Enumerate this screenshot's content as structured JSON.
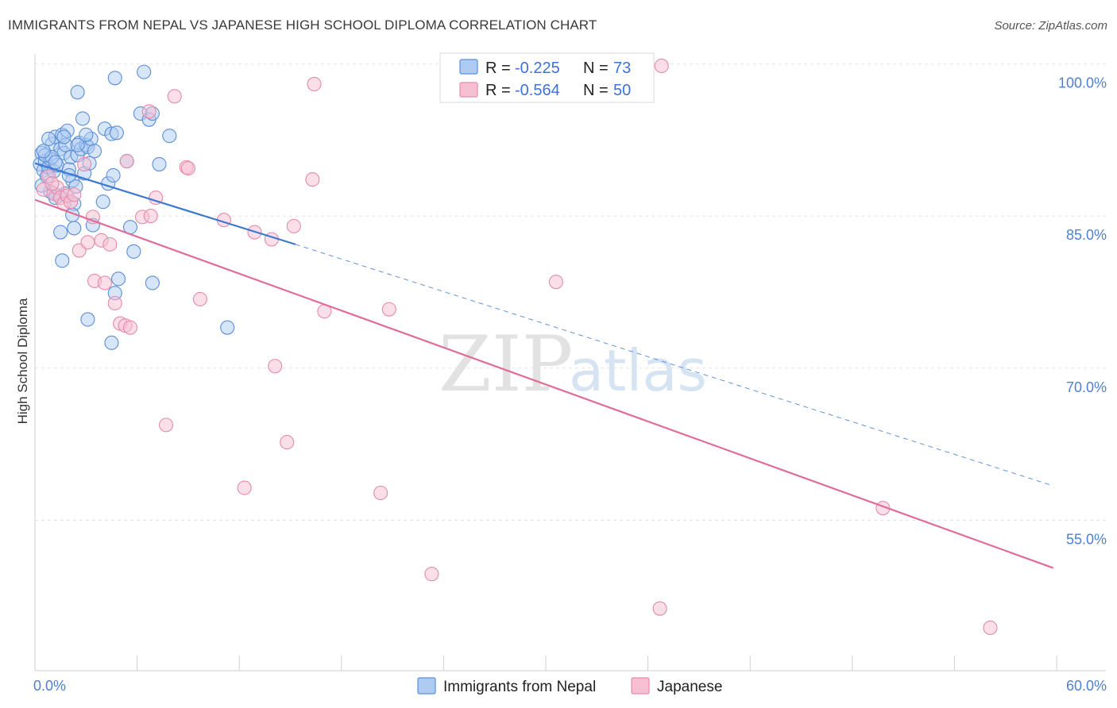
{
  "title": "IMMIGRANTS FROM NEPAL VS JAPANESE HIGH SCHOOL DIPLOMA CORRELATION CHART",
  "source": "Source: ZipAtlas.com",
  "watermark": {
    "zip": "ZIP",
    "atlas": "atlas"
  },
  "colors": {
    "nepal_fill": "#aecbf2",
    "nepal_stroke": "#5b8fd8",
    "nepal_line": "#3b78d0",
    "japanese_fill": "#f7bfd2",
    "japanese_stroke": "#e58aab",
    "japanese_line": "#e06d97",
    "grid": "#e3e3e3",
    "axis_text": "#4f7fd0"
  },
  "legend": {
    "rows": [
      {
        "r_label": "R =",
        "r_value": "-0.225",
        "n_label": "N =",
        "n_value": "73"
      },
      {
        "r_label": "R =",
        "r_value": "-0.564",
        "n_label": "N =",
        "n_value": "50"
      }
    ]
  },
  "chart_data": {
    "type": "scatter",
    "title": "IMMIGRANTS FROM NEPAL VS JAPANESE HIGH SCHOOL DIPLOMA CORRELATION CHART",
    "xlabel": "",
    "ylabel": "High School Diploma",
    "xlim": [
      0,
      60
    ],
    "ylim": [
      42,
      103
    ],
    "x_ticks": [
      "0.0%",
      "60.0%"
    ],
    "y_ticks": [
      {
        "value": 100,
        "label": "100.0%"
      },
      {
        "value": 85,
        "label": "85.0%"
      },
      {
        "value": 70,
        "label": "70.0%"
      },
      {
        "value": 55,
        "label": "55.0%"
      }
    ],
    "grid": true,
    "legend_position": "top-center",
    "series": [
      {
        "name": "Immigrants from Nepal",
        "r": -0.225,
        "n": 73,
        "trend": {
          "x0": 0,
          "y0": 90.2,
          "x1": 15.3,
          "y1": 82.2,
          "dashed_to_x": 59.8,
          "dashed_to_y": 58.4
        },
        "points": [
          [
            0.3,
            90.1
          ],
          [
            0.4,
            91.2
          ],
          [
            0.5,
            89.5
          ],
          [
            0.6,
            90.4
          ],
          [
            0.7,
            88.9
          ],
          [
            0.8,
            89.8
          ],
          [
            0.9,
            90.6
          ],
          [
            1.0,
            92.1
          ],
          [
            1.1,
            89.4
          ],
          [
            1.2,
            92.8
          ],
          [
            1.3,
            90.0
          ],
          [
            1.4,
            87.0
          ],
          [
            1.5,
            91.6
          ],
          [
            1.6,
            93.0
          ],
          [
            1.7,
            91.2
          ],
          [
            1.8,
            92.0
          ],
          [
            1.9,
            93.4
          ],
          [
            2.0,
            89.6
          ],
          [
            2.1,
            90.8
          ],
          [
            2.2,
            88.5
          ],
          [
            2.3,
            86.2
          ],
          [
            2.4,
            87.9
          ],
          [
            2.5,
            91.0
          ],
          [
            2.6,
            92.2
          ],
          [
            2.7,
            91.6
          ],
          [
            2.8,
            94.6
          ],
          [
            2.9,
            89.2
          ],
          [
            3.0,
            92.0
          ],
          [
            3.1,
            91.8
          ],
          [
            3.2,
            90.2
          ],
          [
            3.3,
            92.6
          ],
          [
            3.4,
            84.1
          ],
          [
            3.5,
            91.4
          ],
          [
            2.5,
            97.2
          ],
          [
            4.1,
            93.6
          ],
          [
            4.5,
            93.1
          ],
          [
            4.3,
            88.2
          ],
          [
            4.8,
            93.2
          ],
          [
            4.6,
            89.0
          ],
          [
            4.0,
            86.4
          ],
          [
            0.6,
            91.0
          ],
          [
            0.8,
            92.6
          ],
          [
            1.0,
            90.8
          ],
          [
            0.9,
            87.4
          ],
          [
            1.2,
            86.8
          ],
          [
            1.8,
            87.2
          ],
          [
            2.2,
            85.1
          ],
          [
            1.5,
            83.4
          ],
          [
            2.3,
            83.8
          ],
          [
            1.6,
            80.6
          ],
          [
            3.1,
            74.8
          ],
          [
            4.5,
            72.5
          ],
          [
            4.9,
            78.8
          ],
          [
            4.7,
            77.4
          ],
          [
            5.6,
            83.9
          ],
          [
            5.8,
            81.5
          ],
          [
            6.9,
            78.4
          ],
          [
            5.4,
            90.4
          ],
          [
            4.7,
            98.6
          ],
          [
            6.4,
            99.2
          ],
          [
            6.2,
            95.1
          ],
          [
            6.7,
            94.5
          ],
          [
            6.9,
            95.1
          ],
          [
            7.3,
            90.1
          ],
          [
            7.9,
            92.9
          ],
          [
            11.3,
            74.0
          ],
          [
            2.5,
            92.0
          ],
          [
            3.0,
            93.0
          ],
          [
            0.4,
            88.0
          ],
          [
            2.0,
            89.0
          ],
          [
            1.7,
            92.8
          ],
          [
            1.2,
            90.3
          ],
          [
            0.5,
            91.4
          ]
        ]
      },
      {
        "name": "Japanese",
        "r": -0.564,
        "n": 50,
        "trend": {
          "x0": 0,
          "y0": 86.6,
          "x1": 59.8,
          "y1": 50.3
        },
        "points": [
          [
            0.5,
            87.6
          ],
          [
            0.8,
            88.9
          ],
          [
            1.1,
            87.2
          ],
          [
            1.3,
            87.8
          ],
          [
            1.5,
            86.8
          ],
          [
            1.7,
            86.2
          ],
          [
            1.9,
            87.0
          ],
          [
            2.1,
            86.4
          ],
          [
            2.3,
            87.1
          ],
          [
            2.6,
            81.6
          ],
          [
            2.9,
            90.1
          ],
          [
            3.1,
            82.4
          ],
          [
            3.4,
            84.9
          ],
          [
            3.5,
            78.6
          ],
          [
            3.9,
            82.6
          ],
          [
            4.1,
            78.4
          ],
          [
            4.4,
            82.2
          ],
          [
            4.7,
            76.4
          ],
          [
            5.0,
            74.4
          ],
          [
            5.3,
            74.2
          ],
          [
            5.4,
            90.4
          ],
          [
            5.6,
            74.0
          ],
          [
            6.3,
            84.9
          ],
          [
            6.7,
            95.3
          ],
          [
            6.8,
            85.0
          ],
          [
            7.1,
            86.8
          ],
          [
            7.7,
            64.4
          ],
          [
            8.2,
            96.8
          ],
          [
            8.9,
            89.8
          ],
          [
            9.0,
            89.7
          ],
          [
            9.7,
            76.8
          ],
          [
            11.1,
            84.6
          ],
          [
            12.3,
            58.2
          ],
          [
            12.9,
            83.4
          ],
          [
            13.9,
            82.7
          ],
          [
            14.1,
            70.2
          ],
          [
            14.8,
            62.7
          ],
          [
            15.2,
            84.0
          ],
          [
            16.3,
            88.6
          ],
          [
            16.4,
            98.0
          ],
          [
            17.0,
            75.6
          ],
          [
            20.3,
            57.7
          ],
          [
            20.8,
            75.8
          ],
          [
            23.3,
            49.7
          ],
          [
            30.6,
            78.5
          ],
          [
            36.7,
            46.3
          ],
          [
            36.8,
            99.8
          ],
          [
            49.8,
            56.2
          ],
          [
            56.1,
            44.4
          ],
          [
            1.0,
            88.2
          ]
        ]
      }
    ]
  }
}
